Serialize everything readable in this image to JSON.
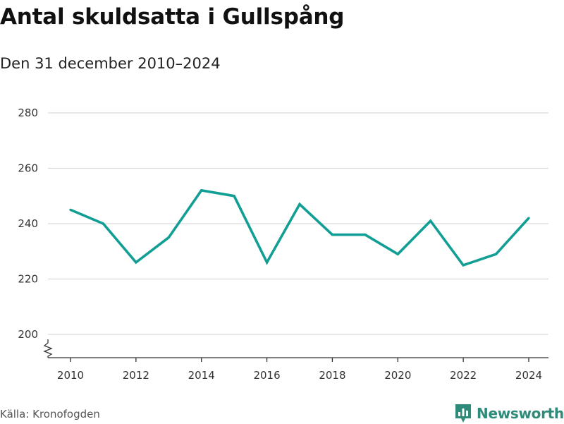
{
  "header": {
    "title": "Antal skuldsatta i Gullspång",
    "subtitle": "Den 31 december 2010–2024"
  },
  "footer": {
    "source": "Källa: Kronofogden",
    "brand": "Newsworthy",
    "brand_icon": "bar-chart-logo-icon"
  },
  "colors": {
    "line": "#119e94",
    "grid": "#d9d9d9",
    "axis": "#333333",
    "brand": "#2e8b7a"
  },
  "chart_data": {
    "type": "line",
    "x": [
      2010,
      2011,
      2012,
      2013,
      2014,
      2015,
      2016,
      2017,
      2018,
      2019,
      2020,
      2021,
      2022,
      2023,
      2024
    ],
    "series": [
      {
        "values": [
          245,
          240,
          226,
          235,
          252,
          250,
          226,
          247,
          236,
          236,
          229,
          241,
          225,
          229,
          242
        ]
      }
    ],
    "x_ticks": [
      2010,
      2012,
      2014,
      2016,
      2018,
      2020,
      2022,
      2024
    ],
    "y_ticks": [
      200,
      220,
      240,
      260,
      280
    ],
    "ylim": [
      200,
      280
    ],
    "y_axis_break": true,
    "grid": "horizontal",
    "xlabel": "",
    "ylabel": ""
  }
}
